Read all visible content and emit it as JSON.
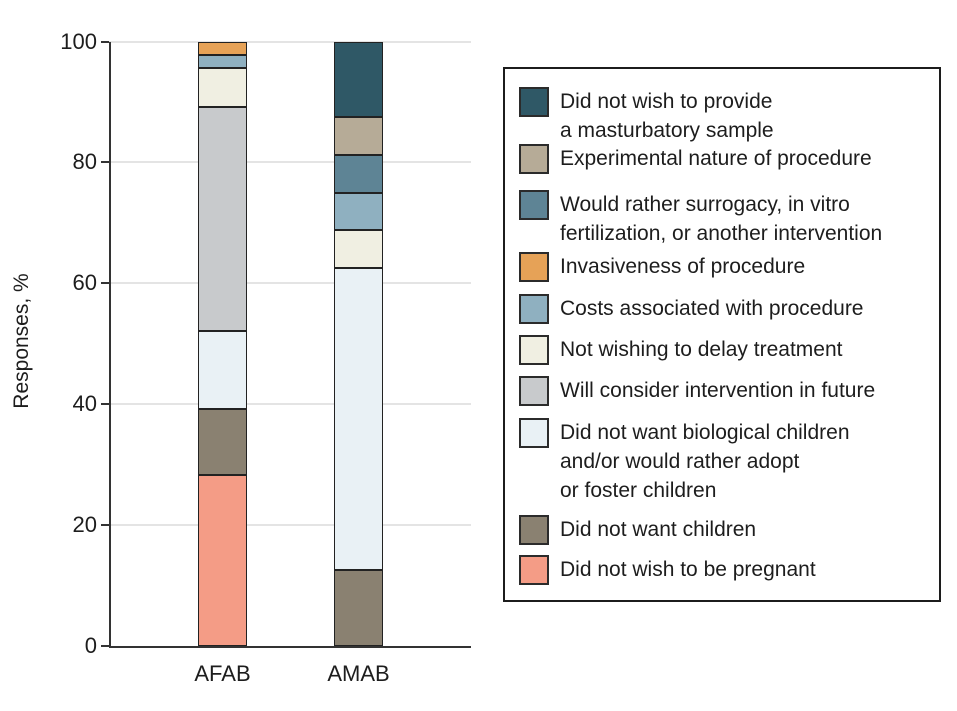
{
  "chart_data": {
    "type": "stacked-bar",
    "title": "",
    "xlabel": "",
    "ylabel": "Responses, %",
    "ylim": [
      0,
      100
    ],
    "yticks": [
      0,
      20,
      40,
      60,
      80,
      100
    ],
    "grid": "horizontal",
    "legend_position": "right",
    "stack_note": "first series is drawn at the top of the stack; last series at the bottom",
    "categories": [
      "AFAB",
      "AMAB"
    ],
    "series": [
      {
        "name": "Did not wish to provide a masturbatory sample",
        "legend_lines": [
          "Did not wish to provide",
          "a masturbatory sample"
        ],
        "color": "#2F5866",
        "values": [
          0,
          12.5
        ]
      },
      {
        "name": "Experimental nature of procedure",
        "legend_lines": [
          "Experimental nature of procedure"
        ],
        "color": "#B6AB97",
        "values": [
          0,
          6.25
        ]
      },
      {
        "name": "Would rather surrogacy, in vitro fertilization, or another intervention",
        "legend_lines": [
          "Would rather surrogacy, in vitro",
          "fertilization, or another intervention"
        ],
        "color": "#5E8495",
        "values": [
          0,
          6.25
        ]
      },
      {
        "name": "Invasiveness of procedure",
        "legend_lines": [
          "Invasiveness of procedure"
        ],
        "color": "#E6A257",
        "values": [
          2.2,
          0
        ]
      },
      {
        "name": "Costs associated with procedure",
        "legend_lines": [
          "Costs associated with procedure"
        ],
        "color": "#8FB0C0",
        "values": [
          2.2,
          6.25
        ]
      },
      {
        "name": "Not wishing to delay treatment",
        "legend_lines": [
          "Not wishing to delay treatment"
        ],
        "color": "#F0EFE2",
        "values": [
          6.5,
          6.25
        ]
      },
      {
        "name": "Will consider intervention in future",
        "legend_lines": [
          "Will consider intervention in future"
        ],
        "color": "#C8CACC",
        "values": [
          37.0,
          0
        ]
      },
      {
        "name": "Did not want biological children and/or would rather adopt or foster children",
        "legend_lines": [
          "Did not want biological children",
          "and/or would rather adopt",
          "or foster children"
        ],
        "color": "#E9F1F5",
        "values": [
          13.0,
          50
        ]
      },
      {
        "name": "Did not want children",
        "legend_lines": [
          "Did not want children"
        ],
        "color": "#8A8171",
        "values": [
          10.9,
          12.5
        ]
      },
      {
        "name": "Did not wish to be pregnant",
        "legend_lines": [
          "Did not wish to be pregnant"
        ],
        "color": "#F49C86",
        "values": [
          28.3,
          0
        ]
      }
    ]
  }
}
